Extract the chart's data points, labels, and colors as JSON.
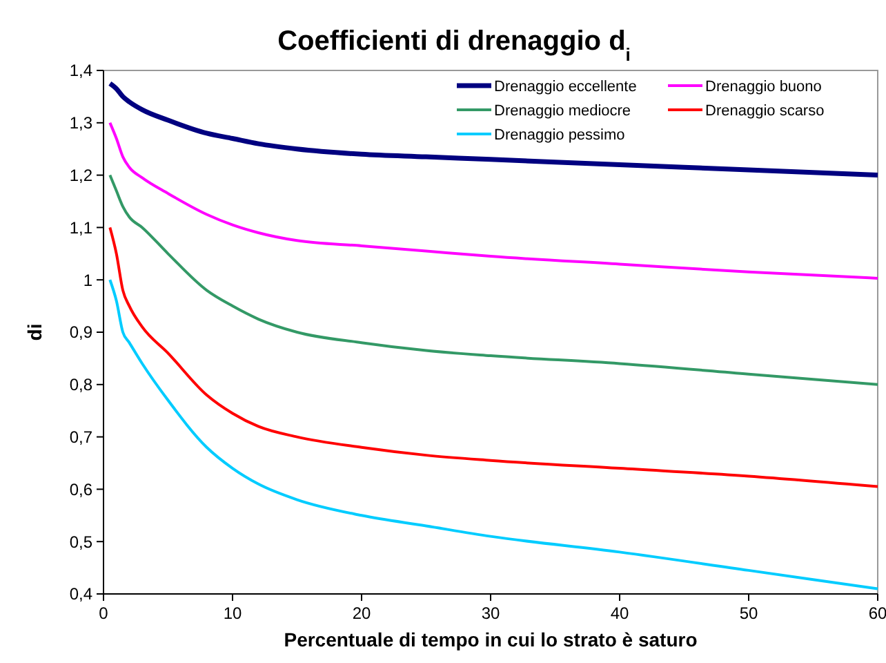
{
  "chart_data": {
    "type": "line",
    "title": "Coefficienti di drenaggio d$_{i}$",
    "xlabel": "Percentuale di tempo in cui lo strato è saturo",
    "ylabel": "di",
    "xlim": [
      0,
      60
    ],
    "xticks": [
      0,
      10,
      20,
      30,
      40,
      50,
      60
    ],
    "ylim": [
      0.4,
      1.4
    ],
    "yticks": [
      {
        "value": 0.4,
        "label": "0,4"
      },
      {
        "value": 0.5,
        "label": "0,5"
      },
      {
        "value": 0.6,
        "label": "0,6"
      },
      {
        "value": 0.7,
        "label": "0,7"
      },
      {
        "value": 0.8,
        "label": "0,8"
      },
      {
        "value": 0.9,
        "label": "0,9"
      },
      {
        "value": 1,
        "label": "1"
      },
      {
        "value": 1.1,
        "label": "1,1"
      },
      {
        "value": 1.2,
        "label": "1,2"
      },
      {
        "value": 1.3,
        "label": "1,3"
      },
      {
        "value": 1.4,
        "label": "1,4"
      }
    ],
    "grid": false,
    "legend": "top right",
    "marker": "none",
    "line_style": "solid",
    "x": [
      0.5,
      1,
      1.5,
      2,
      3,
      5,
      8,
      10,
      12,
      15,
      20,
      25,
      30,
      40,
      50,
      60
    ],
    "series": [
      {
        "name": "Drenaggio eccellente",
        "color": "#000080",
        "values": [
          1.375,
          1.365,
          1.35,
          1.34,
          1.325,
          1.305,
          1.28,
          1.27,
          1.26,
          1.25,
          1.24,
          1.235,
          1.23,
          1.22,
          1.21,
          1.2
        ]
      },
      {
        "name": "Drenaggio buono",
        "color": "#ff00ff",
        "values": [
          1.3,
          1.27,
          1.235,
          1.215,
          1.195,
          1.165,
          1.125,
          1.105,
          1.09,
          1.075,
          1.065,
          1.055,
          1.045,
          1.03,
          1.015,
          1.003
        ]
      },
      {
        "name": "Drenaggio mediocre",
        "color": "#339966",
        "values": [
          1.2,
          1.17,
          1.14,
          1.12,
          1.1,
          1.05,
          0.98,
          0.95,
          0.925,
          0.9,
          0.88,
          0.865,
          0.855,
          0.84,
          0.82,
          0.8
        ]
      },
      {
        "name": "Drenaggio scarso",
        "color": "#ff0000",
        "values": [
          1.1,
          1.05,
          0.98,
          0.95,
          0.91,
          0.86,
          0.78,
          0.745,
          0.72,
          0.7,
          0.68,
          0.665,
          0.655,
          0.64,
          0.625,
          0.605
        ]
      },
      {
        "name": "Drenaggio pessimo",
        "color": "#00ccff",
        "values": [
          1.0,
          0.96,
          0.9,
          0.88,
          0.84,
          0.77,
          0.68,
          0.64,
          0.61,
          0.58,
          0.55,
          0.53,
          0.51,
          0.48,
          0.445,
          0.41
        ]
      }
    ]
  }
}
